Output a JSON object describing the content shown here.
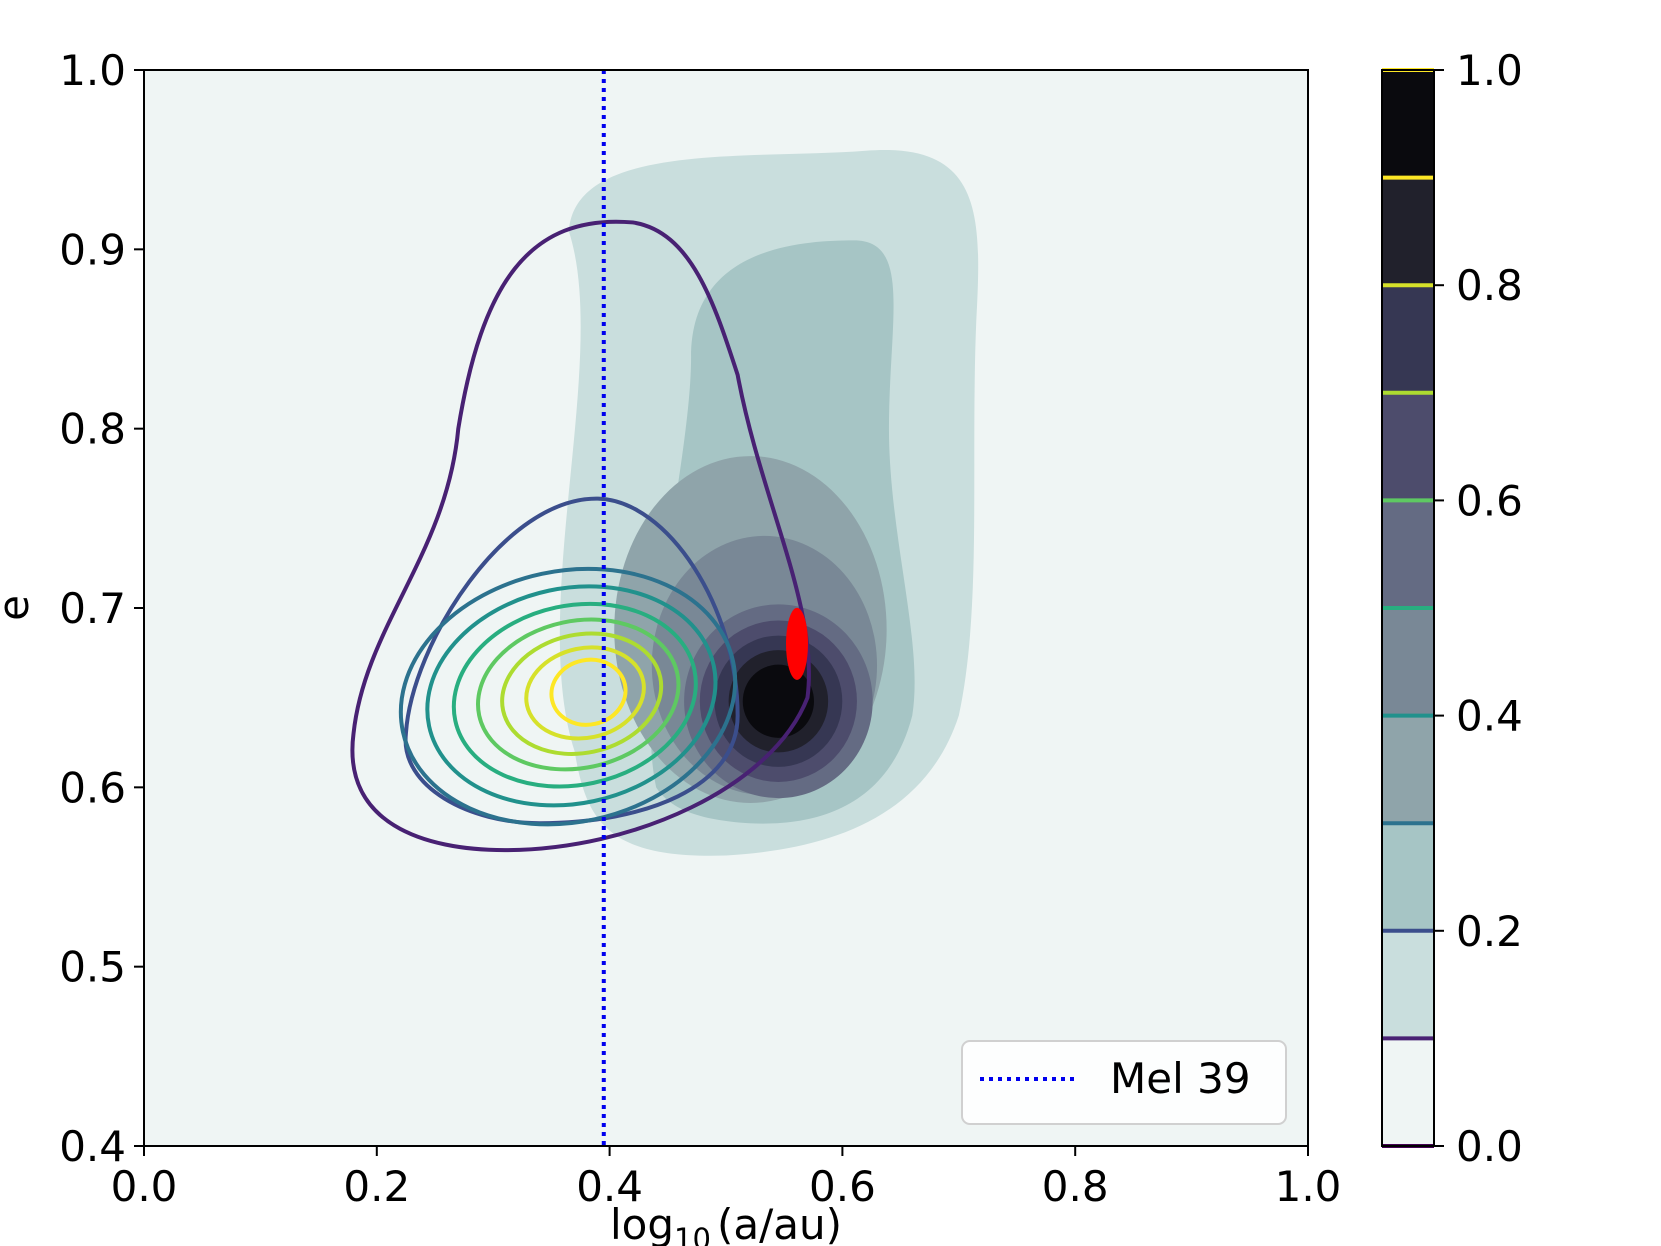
{
  "chart_data": {
    "type": "contour",
    "xlabel_prefix": "log",
    "xlabel_sub": "10",
    "xlabel_suffix": "(a/au)",
    "ylabel": "e",
    "xlim": [
      0.0,
      1.0
    ],
    "ylim": [
      0.4,
      1.0
    ],
    "x_ticks": [
      0.0,
      0.2,
      0.4,
      0.6,
      0.8,
      1.0
    ],
    "x_tick_labels": [
      "0.0",
      "0.2",
      "0.4",
      "0.6",
      "0.8",
      "1.0"
    ],
    "y_ticks": [
      0.4,
      0.5,
      0.6,
      0.7,
      0.8,
      0.9,
      1.0
    ],
    "y_tick_labels": [
      "0.4",
      "0.5",
      "0.6",
      "0.7",
      "0.8",
      "0.9",
      "1.0"
    ],
    "grid": false,
    "background_color": "#eff5f4",
    "filled_density": {
      "peak": {
        "x": 0.545,
        "e": 0.648
      },
      "sigma_core": {
        "x": 0.045,
        "e": 0.03
      },
      "broad_envelope": {
        "x_range": [
          0.36,
          0.72
        ],
        "e_range": [
          0.56,
          0.95
        ]
      },
      "levels": [
        0.1,
        0.2,
        0.3,
        0.4,
        0.5,
        0.6,
        0.7,
        0.8,
        0.9
      ],
      "colors": [
        "#eff5f4",
        "#c9dedd",
        "#a6c5c5",
        "#8fa4aa",
        "#798896",
        "#646b83",
        "#4d4c6c",
        "#363753",
        "#21212c",
        "#0a0a0e"
      ]
    },
    "line_contours": {
      "peak": {
        "x": 0.375,
        "e": 0.649
      },
      "levels": [
        0.1,
        0.2,
        0.3,
        0.4,
        0.5,
        0.6,
        0.7,
        0.8,
        0.9
      ],
      "colors": [
        "#482173",
        "#3b4e8c",
        "#2c728e",
        "#21918c",
        "#28ae80",
        "#5ec962",
        "#addc30",
        "#d6e12a",
        "#fde725"
      ]
    },
    "marker": {
      "x": 0.561,
      "e": 0.68,
      "color": "#ff0000"
    },
    "reference_line": {
      "x": 0.395,
      "name": "Mel 39",
      "color": "#0000ee",
      "style": "dotted"
    },
    "legend": {
      "placement": "lower-right",
      "entries": [
        "Mel 39"
      ]
    },
    "colorbar": {
      "min": 0.0,
      "max": 1.0,
      "ticks": [
        0.0,
        0.2,
        0.4,
        0.6,
        0.8,
        1.0
      ],
      "tick_labels": [
        "0.0",
        "0.2",
        "0.4",
        "0.6",
        "0.8",
        "1.0"
      ],
      "line_levels": [
        0.0,
        0.1,
        0.2,
        0.3,
        0.4,
        0.5,
        0.6,
        0.7,
        0.8,
        0.9,
        1.0
      ],
      "line_colors": [
        "#440154",
        "#482173",
        "#3b4e8c",
        "#2c728e",
        "#21918c",
        "#28ae80",
        "#5ec962",
        "#addc30",
        "#d6e12a",
        "#fde725",
        "#fde725"
      ]
    }
  }
}
